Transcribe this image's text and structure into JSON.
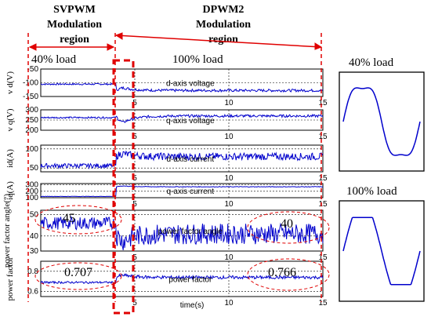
{
  "header": {
    "svpwm": [
      "SVPWM",
      "Modulation",
      "region"
    ],
    "dpwm2": [
      "DPWM2",
      "Modulation",
      "region"
    ],
    "load40": "40% load",
    "load100": "100% load"
  },
  "side_panels": {
    "top_title": "40% load",
    "bottom_title": "100% load"
  },
  "annotations": {
    "pf_angle_40": "45",
    "pf_angle_100": "40",
    "pf_40": "0.707",
    "pf_100": "0.766"
  },
  "colors": {
    "trace": "#0000cc",
    "region_marker": "#e00000",
    "grid": "#000000"
  },
  "chart_data": {
    "type": "line",
    "xlabel": "time(s)",
    "xlim": [
      0,
      15
    ],
    "x_ticks": [
      "5",
      "10",
      "15"
    ],
    "load_step_time": 4,
    "panels": [
      {
        "id": "vd",
        "ylabel": "v d(V)",
        "title": "d-axis voltage",
        "ylim": [
          -150,
          -50
        ],
        "y_ticks": [
          "-50",
          "-100",
          "-150"
        ],
        "before": -105,
        "dip": -110,
        "after": -128,
        "noise": 3
      },
      {
        "id": "vq",
        "ylabel": "v q(V)",
        "title": "q-axis voltage",
        "ylim": [
          200,
          300
        ],
        "y_ticks": [
          "300",
          "250",
          "200"
        ],
        "before": 262,
        "dip": 210,
        "after": 270,
        "noise": 4
      },
      {
        "id": "id",
        "ylabel": "id(A)",
        "title": "d-axis current",
        "ylim": [
          40,
          110
        ],
        "y_ticks": [
          "100",
          "50"
        ],
        "before": 56,
        "dip": 95,
        "after": 80,
        "noise": 6
      },
      {
        "id": "iq",
        "ylabel": "iq(A)",
        "title": "q-axis current",
        "ylim": [
          100,
          320
        ],
        "y_ticks": [
          "300",
          "200",
          "100"
        ],
        "before": 120,
        "dip": 295,
        "after": 270,
        "noise": 3
      },
      {
        "id": "pfa",
        "ylabel": "power factor angle(°)",
        "title": "power factor angle",
        "ylim": [
          33,
          52
        ],
        "y_ticks": [
          "50",
          "40",
          "30"
        ],
        "before": 46,
        "dip": 35,
        "after": 41,
        "noise": 3
      },
      {
        "id": "pf",
        "ylabel": "power factor",
        "title": "power factor",
        "ylim": [
          0.55,
          0.9
        ],
        "y_ticks": [
          "0.8",
          "0.6"
        ],
        "before": 0.69,
        "dip": 0.78,
        "after": 0.74,
        "noise": 0.01
      }
    ]
  }
}
